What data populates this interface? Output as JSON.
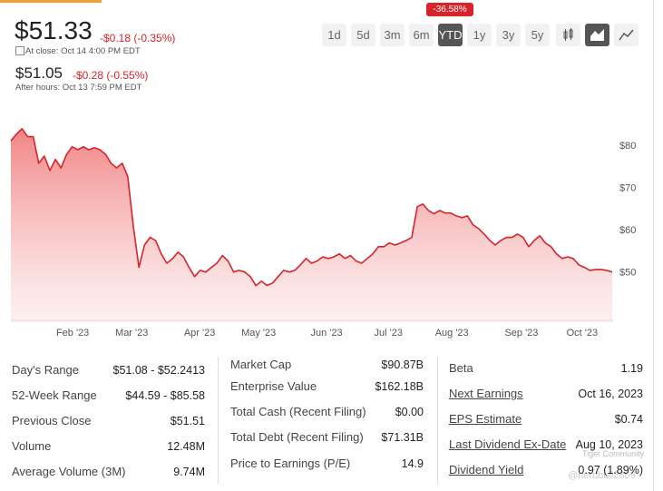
{
  "quote": {
    "price": "$51.33",
    "change": "-$0.18 (-0.35%)",
    "close_time": "At close: Oct 14 4:00 PM EDT",
    "after_price": "$51.05",
    "after_change": "-$0.28 (-0.55%)",
    "after_time": "After hours: Oct 13 7:59 PM EDT"
  },
  "ranges": [
    "1d",
    "5d",
    "3m",
    "6m",
    "YTD",
    "1y",
    "3y",
    "5y"
  ],
  "selected_range": 4,
  "range_change": "-36.58%",
  "chart_data": {
    "type": "area",
    "color": "#d8232a",
    "values": [
      81.0,
      82.6,
      83.9,
      82.0,
      82.0,
      75.7,
      77.4,
      74.0,
      76.6,
      74.6,
      77.8,
      79.6,
      78.9,
      79.6,
      78.9,
      79.4,
      78.9,
      77.8,
      75.7,
      74.6,
      75.7,
      72.5,
      60.6,
      51.0,
      56.3,
      58.1,
      57.4,
      54.2,
      52.0,
      53.0,
      54.6,
      53.5,
      51.0,
      48.8,
      50.3,
      49.9,
      51.0,
      52.0,
      53.8,
      52.5,
      49.9,
      50.3,
      49.9,
      48.8,
      46.7,
      47.7,
      46.7,
      47.3,
      48.8,
      50.3,
      49.9,
      50.3,
      51.6,
      53.1,
      52.0,
      52.5,
      53.5,
      53.1,
      53.5,
      54.2,
      53.1,
      53.8,
      52.5,
      52.0,
      53.1,
      54.2,
      55.9,
      55.9,
      56.8,
      56.3,
      56.8,
      57.4,
      58.1,
      65.4,
      66.0,
      64.5,
      63.7,
      64.5,
      63.9,
      63.9,
      63.2,
      62.8,
      63.2,
      61.1,
      60.2,
      58.9,
      57.4,
      56.3,
      57.4,
      58.1,
      58.1,
      58.9,
      58.1,
      55.9,
      57.4,
      58.5,
      56.8,
      55.9,
      54.2,
      53.1,
      53.5,
      53.1,
      51.6,
      51.0,
      50.3,
      50.5,
      50.5,
      50.3,
      49.9
    ],
    "xlim": [
      0,
      108
    ],
    "xticks": [
      {
        "value": 11.1,
        "label": "Feb '23"
      },
      {
        "value": 21.7,
        "label": "Mar '23"
      },
      {
        "value": 33.9,
        "label": "Apr '23"
      },
      {
        "value": 44.5,
        "label": "May '23"
      },
      {
        "value": 56.7,
        "label": "Jun '23"
      },
      {
        "value": 67.8,
        "label": "Jul '23"
      },
      {
        "value": 79.2,
        "label": "Aug '23"
      },
      {
        "value": 91.7,
        "label": "Sep '23"
      },
      {
        "value": 102.6,
        "label": "Oct '23"
      }
    ],
    "ylim": [
      38,
      86
    ],
    "yticks": [
      {
        "value": 80,
        "label": "$80"
      },
      {
        "value": 70,
        "label": "$70"
      },
      {
        "value": 60,
        "label": "$60"
      },
      {
        "value": 50,
        "label": "$50"
      }
    ]
  },
  "stats": [
    [
      {
        "label": "Day's Range",
        "value": "$51.08 - $52.2413"
      },
      {
        "label": "52-Week Range",
        "value": "$44.59 - $85.58"
      },
      {
        "label": "Previous Close",
        "value": "$51.51"
      },
      {
        "label": "Volume",
        "value": "12.48M"
      },
      {
        "label": "Average Volume (3M)",
        "value": "9.74M"
      }
    ],
    [
      {
        "label": "Market Cap",
        "value": "$90.87B"
      },
      {
        "label": "Enterprise Value",
        "value": "$162.18B"
      },
      {
        "label": "Total Cash (Recent Filing)",
        "value": "$0.00"
      },
      {
        "label": "Total Debt (Recent Filing)",
        "value": "$71.31B"
      },
      {
        "label": "Price to Earnings (P/E)",
        "value": "14.9"
      }
    ],
    [
      {
        "label": "Beta",
        "value": "1.19"
      },
      {
        "label": "Next Earnings",
        "value": "Oct 16, 2023"
      },
      {
        "label": "EPS Estimate",
        "value": "$0.74"
      },
      {
        "label": "Last Dividend Ex-Date",
        "value": "Aug 10, 2023"
      },
      {
        "label": "Dividend Yield",
        "value": "0.97 (1.89%)"
      }
    ]
  ],
  "watermark": {
    "brand": "Tiger Community",
    "user": "@nerdbull2869"
  }
}
